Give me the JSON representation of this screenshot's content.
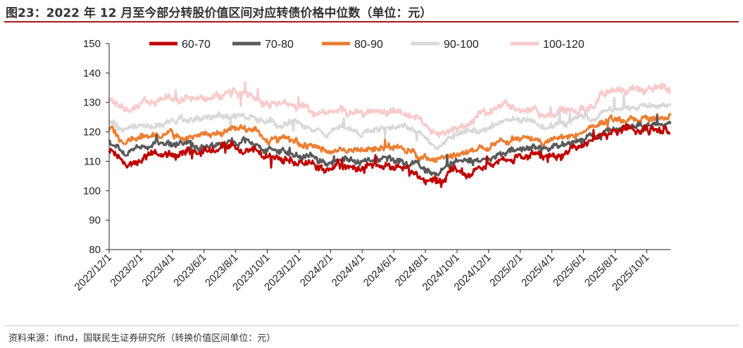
{
  "header": {
    "title": "图23：2022 年 12 月至今部分转股价值区间对应转债价格中位数（单位：元）"
  },
  "footer": {
    "source": "资料来源：ifind，国联民生证券研究所（转换价值区间单位：元）"
  },
  "chart_data": {
    "type": "line",
    "title": "2022 年 12 月至今部分转股价值区间对应转债价格中位数",
    "xlabel": "",
    "ylabel": "",
    "ylim": [
      80,
      150
    ],
    "yticks": [
      80,
      90,
      100,
      110,
      120,
      130,
      140,
      150
    ],
    "x_tick_labels": [
      "2022/12/1",
      "2023/2/1",
      "2023/4/1",
      "2023/6/1",
      "2023/8/1",
      "2023/10/1",
      "2023/12/1",
      "2024/2/1",
      "2024/4/1",
      "2024/6/1",
      "2024/8/1",
      "2024/10/1",
      "2024/12/1",
      "2025/2/1",
      "2025/4/1",
      "2025/6/1",
      "2025/8/1",
      "2025/10/1"
    ],
    "legend_position": "top",
    "x": [
      "2022/12/1",
      "2023/1/1",
      "2023/2/1",
      "2023/3/1",
      "2023/4/1",
      "2023/5/1",
      "2023/6/1",
      "2023/7/1",
      "2023/8/1",
      "2023/9/1",
      "2023/10/1",
      "2023/11/1",
      "2023/12/1",
      "2024/1/1",
      "2024/2/1",
      "2024/3/1",
      "2024/4/1",
      "2024/5/1",
      "2024/6/1",
      "2024/7/1",
      "2024/8/1",
      "2024/9/1",
      "2024/10/1",
      "2024/11/1",
      "2024/12/1",
      "2025/1/1",
      "2025/2/1",
      "2025/3/1",
      "2025/4/1",
      "2025/5/1",
      "2025/6/1",
      "2025/7/1",
      "2025/8/1",
      "2025/9/1",
      "2025/10/1",
      "2025/11/1",
      "2025/12/1"
    ],
    "series": [
      {
        "name": "60-70",
        "color": "#c00000",
        "values": [
          114,
          110,
          111,
          112,
          113,
          113,
          113,
          114,
          115,
          115,
          112,
          111,
          110,
          109,
          107,
          109,
          107,
          108,
          109,
          107,
          105,
          103,
          107,
          106,
          108,
          110,
          112,
          113,
          112,
          113,
          115,
          117,
          119,
          120,
          120,
          121,
          121
        ]
      },
      {
        "name": "70-80",
        "color": "#595959",
        "values": [
          117,
          113,
          115,
          116,
          116,
          116,
          115,
          116,
          117,
          117,
          114,
          113,
          113,
          111,
          109,
          111,
          110,
          111,
          111,
          110,
          108,
          105,
          109,
          110,
          110,
          112,
          114,
          115,
          114,
          115,
          117,
          119,
          121,
          122,
          122,
          123,
          123
        ]
      },
      {
        "name": "80-90",
        "color": "#ed7d31",
        "values": [
          121,
          117,
          118,
          119,
          119,
          119,
          119,
          120,
          121,
          121,
          118,
          118,
          117,
          115,
          113,
          115,
          114,
          114,
          115,
          114,
          112,
          110,
          112,
          113,
          114,
          116,
          117,
          118,
          117,
          118,
          119,
          121,
          124,
          124,
          124,
          125,
          125
        ]
      },
      {
        "name": "90-100",
        "color": "#d9d9d9",
        "values": [
          124,
          121,
          122,
          123,
          123,
          124,
          125,
          125,
          126,
          126,
          124,
          123,
          123,
          121,
          120,
          122,
          120,
          121,
          122,
          122,
          119,
          115,
          118,
          120,
          121,
          123,
          124,
          124,
          122,
          123,
          124,
          125,
          128,
          128,
          128,
          129,
          129
        ]
      },
      {
        "name": "100-120",
        "color": "#f8cbca",
        "values": [
          131,
          127,
          129,
          130,
          131,
          131,
          133,
          132,
          133,
          133,
          130,
          130,
          129,
          127,
          126,
          128,
          126,
          127,
          127,
          126,
          124,
          119,
          121,
          123,
          126,
          129,
          129,
          128,
          125,
          126,
          127,
          129,
          134,
          133,
          134,
          135,
          135
        ]
      }
    ]
  }
}
